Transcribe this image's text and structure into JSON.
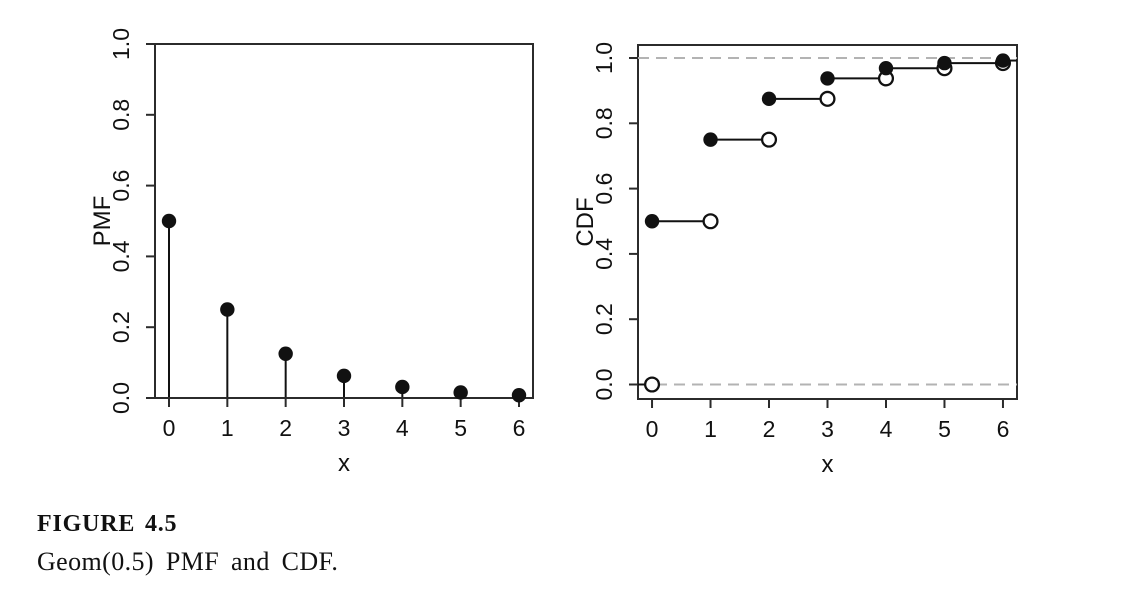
{
  "caption": {
    "label": "FIGURE 4.5",
    "text": "Geom(0.5) PMF and CDF."
  },
  "colors": {
    "axis": "#2b2b2b",
    "data": "#111111",
    "marker_fill": "#111111",
    "open_marker_fill": "#ffffff",
    "dashed_guide": "#b3b3b3",
    "background": "#ffffff"
  },
  "chart_data": [
    {
      "type": "scatter",
      "style": "stem",
      "title": "",
      "xlabel": "x",
      "ylabel": "PMF",
      "x": [
        0,
        1,
        2,
        3,
        4,
        5,
        6
      ],
      "y": [
        0.5,
        0.25,
        0.125,
        0.0625,
        0.03125,
        0.015625,
        0.0078125
      ],
      "xlim": [
        -0.24,
        6.24
      ],
      "ylim": [
        0,
        1
      ],
      "xtick_labels": [
        "0",
        "1",
        "2",
        "3",
        "4",
        "5",
        "6"
      ],
      "ytick_values": [
        0,
        0.2,
        0.4,
        0.6,
        0.8,
        1.0
      ],
      "ytick_labels": [
        "0.0",
        "0.2",
        "0.4",
        "0.6",
        "0.8",
        "1.0"
      ],
      "grid": false,
      "legend": "none",
      "marker": "filled-circle",
      "frame": "full-box"
    },
    {
      "type": "line",
      "style": "step-cdf",
      "title": "",
      "xlabel": "x",
      "ylabel": "CDF",
      "x": [
        0,
        1,
        2,
        3,
        4,
        5,
        6
      ],
      "y": [
        0.5,
        0.75,
        0.875,
        0.9375,
        0.96875,
        0.984375,
        0.9921875
      ],
      "open_points": [
        [
          0,
          0
        ],
        [
          1,
          0.5
        ],
        [
          2,
          0.75
        ],
        [
          3,
          0.875
        ],
        [
          4,
          0.9375
        ],
        [
          5,
          0.96875
        ],
        [
          6,
          0.984375
        ]
      ],
      "dashed_guides_y": [
        0,
        1
      ],
      "xlim": [
        -0.24,
        6.24
      ],
      "ylim": [
        -0.04,
        1.04
      ],
      "xtick_labels": [
        "0",
        "1",
        "2",
        "3",
        "4",
        "5",
        "6"
      ],
      "ytick_values": [
        0,
        0.2,
        0.4,
        0.6,
        0.8,
        1.0
      ],
      "ytick_labels": [
        "0.0",
        "0.2",
        "0.4",
        "0.6",
        "0.8",
        "1.0"
      ],
      "grid": false,
      "legend": "none",
      "marker": "filled-circle",
      "frame": "full-box"
    }
  ]
}
